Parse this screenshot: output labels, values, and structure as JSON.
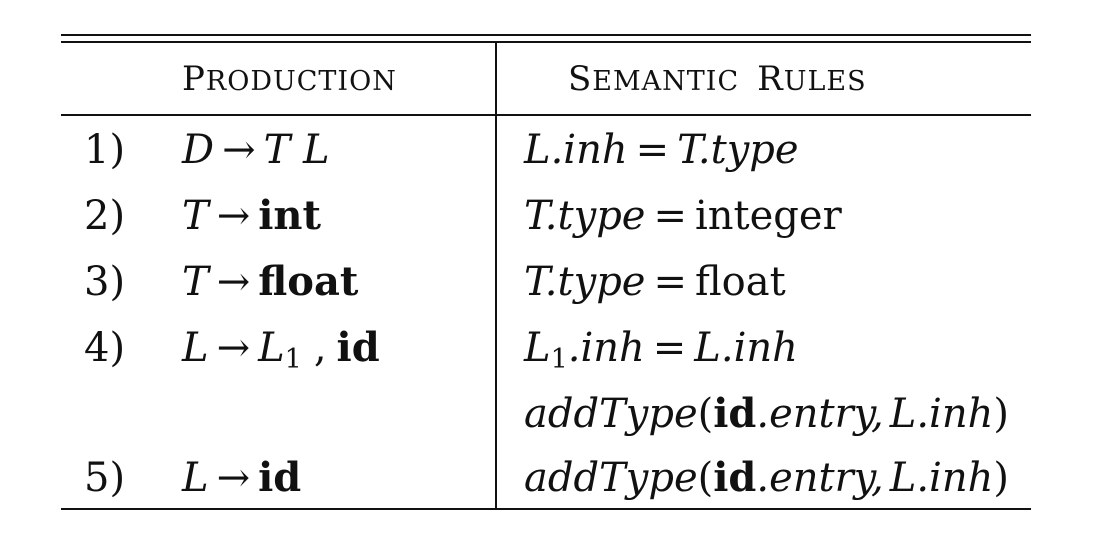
{
  "header": {
    "production": "Production",
    "semantic_rules": "Semantic Rules"
  },
  "rows": [
    {
      "num": "1)",
      "prod_lhs": "D",
      "arrow": "→",
      "prod_rhs": "T L",
      "rule_lhs": "L.inh",
      "eq": "=",
      "rule_rhs": "T.type"
    },
    {
      "num": "2)",
      "prod_lhs": "T",
      "arrow": "→",
      "prod_rhs": "int",
      "rule_lhs": "T.type",
      "eq": "=",
      "rule_rhs": "integer"
    },
    {
      "num": "3)",
      "prod_lhs": "T",
      "arrow": "→",
      "prod_rhs": "float",
      "rule_lhs": "T.type",
      "eq": "=",
      "rule_rhs": "float"
    },
    {
      "num": "4)",
      "prod_lhs": "L",
      "arrow": "→",
      "prod_rhs_var": "L",
      "prod_rhs_sub": "1",
      "prod_rhs_comma": ",",
      "prod_rhs_id": "id",
      "rule_lhs_var": "L",
      "rule_lhs_sub": "1",
      "rule_lhs_attr": ".inh",
      "eq": "=",
      "rule_rhs": "L.inh"
    },
    {
      "rule_fn": "addType",
      "open": "(",
      "rule_id": "id",
      "rule_entry": ".entry,",
      "rule_arg": "L.inh",
      "close": ")"
    },
    {
      "num": "5)",
      "prod_lhs": "L",
      "arrow": "→",
      "prod_rhs": "id",
      "rule_fn": "addType",
      "open": "(",
      "rule_id": "id",
      "rule_entry": ".entry,",
      "rule_arg": "L.inh",
      "close": ")"
    }
  ]
}
